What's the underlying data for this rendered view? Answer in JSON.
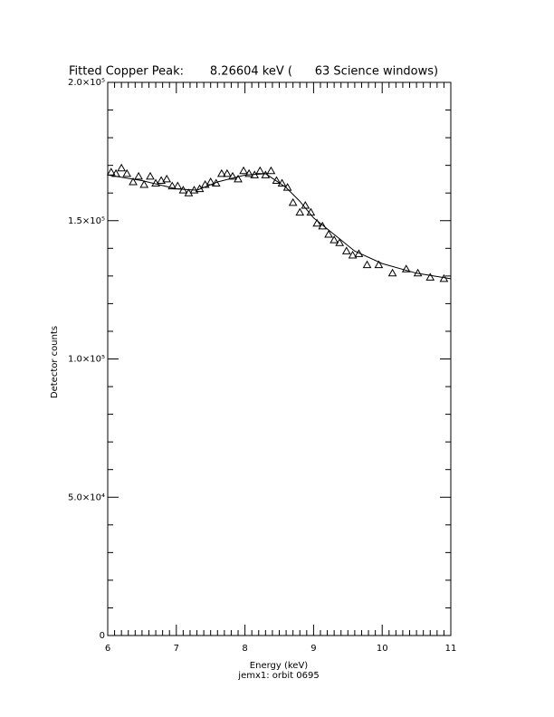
{
  "chart_data": {
    "type": "scatter",
    "title": "Fitted Copper Peak:       8.26604 keV (      63 Science windows)",
    "x_label": "Energy (keV)",
    "y_label": "Detector counts",
    "subtitle": "jemx1: orbit 0695",
    "xlim": [
      6,
      11
    ],
    "xticks": [
      6,
      7,
      8,
      9,
      10,
      11
    ],
    "ylim": [
      0,
      200000
    ],
    "yticks": [
      0,
      {
        "value": 50000,
        "label": "5.0×10⁴"
      },
      {
        "value": 100000,
        "label": "1.0×10⁵"
      },
      {
        "value": 150000,
        "label": "1.5×10⁵"
      },
      {
        "value": 200000,
        "label": "2.0×10⁵"
      }
    ],
    "color": "#000000",
    "points": {
      "x": [
        6.05,
        6.12,
        6.2,
        6.28,
        6.37,
        6.45,
        6.53,
        6.62,
        6.7,
        6.78,
        6.86,
        6.94,
        7.02,
        7.1,
        7.18,
        7.26,
        7.34,
        7.42,
        7.5,
        7.58,
        7.66,
        7.74,
        7.82,
        7.9,
        7.98,
        8.06,
        8.14,
        8.22,
        8.3,
        8.38,
        8.46,
        8.54,
        8.62,
        8.7,
        8.8,
        8.88,
        8.96,
        9.05,
        9.13,
        9.22,
        9.3,
        9.38,
        9.48,
        9.57,
        9.66,
        9.78,
        9.95,
        10.15,
        10.35,
        10.52,
        10.7,
        10.9
      ],
      "values": [
        167500,
        167000,
        169000,
        167000,
        164000,
        166000,
        163000,
        166000,
        163500,
        164500,
        165000,
        162500,
        162500,
        161000,
        160000,
        161000,
        161500,
        163000,
        164000,
        163500,
        167000,
        167000,
        166000,
        165000,
        168000,
        167000,
        166500,
        168000,
        166500,
        168000,
        164500,
        163500,
        162000,
        156500,
        153000,
        155500,
        153000,
        149000,
        148000,
        145000,
        143000,
        142000,
        139000,
        137500,
        138000,
        134000,
        134000,
        131000,
        132500,
        131000,
        129500,
        129000
      ]
    },
    "fit": {
      "x": [
        6,
        6.5,
        7,
        7.3,
        7.6,
        8,
        8.3,
        8.6,
        8.8,
        9,
        9.3,
        9.6,
        10,
        10.5,
        11
      ],
      "values": [
        166500,
        164500,
        161500,
        161000,
        164000,
        166500,
        167000,
        162000,
        157000,
        151000,
        145000,
        139000,
        134500,
        131000,
        129000
      ]
    }
  }
}
